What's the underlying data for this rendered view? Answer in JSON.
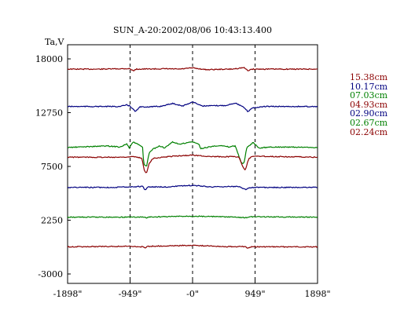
{
  "chart_data": {
    "type": "line",
    "title": "SUN_A-20:2002/08/06 10:43:13.400",
    "ylabel": "Ta,V",
    "xlabel": "",
    "x_range": [
      -1898,
      1898
    ],
    "ylim": [
      -3000,
      18000
    ],
    "x_ticks": [
      {
        "value": -1898,
        "label": "-1898\""
      },
      {
        "value": -949,
        "label": "-949\""
      },
      {
        "value": 0,
        "label": "-0\""
      },
      {
        "value": 949,
        "label": "949\""
      },
      {
        "value": 1898,
        "label": "1898\""
      }
    ],
    "y_ticks": [
      {
        "value": 18000,
        "label": "18000"
      },
      {
        "value": 12750,
        "label": "12750"
      },
      {
        "value": 7500,
        "label": "7500"
      },
      {
        "value": 2250,
        "label": "2250"
      },
      {
        "value": -3000,
        "label": "-3000"
      }
    ],
    "vertical_dashed_lines": [
      -949,
      0,
      949
    ],
    "grid": false,
    "legend_position": "right",
    "series": [
      {
        "name": "15.38cm",
        "color": "#8b0000",
        "baseline": 17000,
        "points": [
          [
            -1898,
            17000
          ],
          [
            -1400,
            17000
          ],
          [
            -960,
            17050
          ],
          [
            -900,
            16850
          ],
          [
            -850,
            17000
          ],
          [
            -400,
            17030
          ],
          [
            -200,
            17000
          ],
          [
            0,
            17120
          ],
          [
            200,
            16950
          ],
          [
            600,
            17000
          ],
          [
            780,
            17150
          ],
          [
            840,
            16850
          ],
          [
            900,
            17000
          ],
          [
            1898,
            17000
          ]
        ]
      },
      {
        "name": "10.17cm",
        "color": "#000080",
        "baseline": 13350,
        "points": [
          [
            -1898,
            13350
          ],
          [
            -1100,
            13350
          ],
          [
            -1000,
            13500
          ],
          [
            -950,
            13400
          ],
          [
            -870,
            12850
          ],
          [
            -800,
            13300
          ],
          [
            -500,
            13350
          ],
          [
            -300,
            13650
          ],
          [
            -150,
            13400
          ],
          [
            0,
            13800
          ],
          [
            150,
            13400
          ],
          [
            500,
            13450
          ],
          [
            650,
            13700
          ],
          [
            780,
            13250
          ],
          [
            840,
            12850
          ],
          [
            900,
            13200
          ],
          [
            1100,
            13350
          ],
          [
            1898,
            13350
          ]
        ]
      },
      {
        "name": "07.03cm",
        "color": "#008000",
        "baseline": 9350,
        "points": [
          [
            -1898,
            9350
          ],
          [
            -1300,
            9500
          ],
          [
            -1100,
            9400
          ],
          [
            -1000,
            9700
          ],
          [
            -960,
            9300
          ],
          [
            -900,
            9900
          ],
          [
            -760,
            9400
          ],
          [
            -740,
            7700
          ],
          [
            -700,
            7450
          ],
          [
            -660,
            8800
          ],
          [
            -600,
            9200
          ],
          [
            -500,
            9500
          ],
          [
            -420,
            9300
          ],
          [
            -300,
            9900
          ],
          [
            -200,
            9650
          ],
          [
            -100,
            9800
          ],
          [
            0,
            9900
          ],
          [
            100,
            9650
          ],
          [
            120,
            9200
          ],
          [
            200,
            9350
          ],
          [
            400,
            9550
          ],
          [
            550,
            9400
          ],
          [
            650,
            9500
          ],
          [
            740,
            7850
          ],
          [
            780,
            7750
          ],
          [
            820,
            9300
          ],
          [
            880,
            9600
          ],
          [
            920,
            9850
          ],
          [
            1000,
            9300
          ],
          [
            1200,
            9400
          ],
          [
            1898,
            9350
          ]
        ]
      },
      {
        "name": "04.93cm",
        "color": "#8b0000",
        "baseline": 8400,
        "points": [
          [
            -1898,
            8400
          ],
          [
            -1100,
            8400
          ],
          [
            -900,
            8450
          ],
          [
            -770,
            8300
          ],
          [
            -730,
            7000
          ],
          [
            -700,
            6850
          ],
          [
            -660,
            7800
          ],
          [
            -600,
            8300
          ],
          [
            -300,
            8500
          ],
          [
            0,
            8600
          ],
          [
            300,
            8450
          ],
          [
            700,
            8450
          ],
          [
            760,
            7500
          ],
          [
            800,
            7150
          ],
          [
            850,
            8200
          ],
          [
            900,
            8500
          ],
          [
            1898,
            8400
          ]
        ]
      },
      {
        "name": "02.90cm",
        "color": "#000080",
        "baseline": 5450,
        "points": [
          [
            -1898,
            5450
          ],
          [
            -1200,
            5450
          ],
          [
            -760,
            5550
          ],
          [
            -720,
            5200
          ],
          [
            -680,
            5500
          ],
          [
            -400,
            5500
          ],
          [
            0,
            5650
          ],
          [
            300,
            5500
          ],
          [
            700,
            5550
          ],
          [
            800,
            5250
          ],
          [
            880,
            5450
          ],
          [
            1898,
            5450
          ]
        ]
      },
      {
        "name": "02.67cm",
        "color": "#008000",
        "baseline": 2550,
        "points": [
          [
            -1898,
            2550
          ],
          [
            -1000,
            2550
          ],
          [
            -720,
            2550
          ],
          [
            -700,
            2420
          ],
          [
            -680,
            2550
          ],
          [
            0,
            2650
          ],
          [
            600,
            2550
          ],
          [
            820,
            2500
          ],
          [
            900,
            2580
          ],
          [
            1898,
            2550
          ]
        ]
      },
      {
        "name": "02.24cm",
        "color": "#8b0000",
        "baseline": -350,
        "points": [
          [
            -1898,
            -350
          ],
          [
            -1000,
            -300
          ],
          [
            -760,
            -350
          ],
          [
            -720,
            -450
          ],
          [
            -680,
            -300
          ],
          [
            0,
            -200
          ],
          [
            500,
            -330
          ],
          [
            800,
            -330
          ],
          [
            840,
            -500
          ],
          [
            900,
            -350
          ],
          [
            1898,
            -350
          ]
        ]
      }
    ]
  }
}
